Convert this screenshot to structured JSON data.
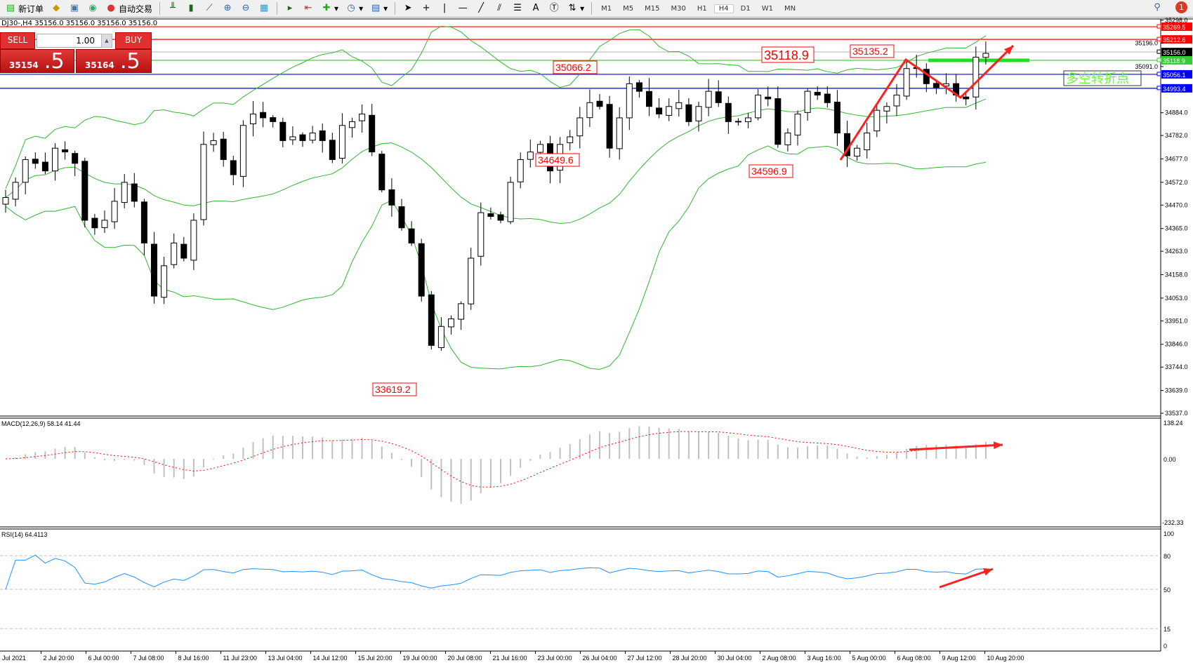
{
  "toolbar": {
    "new_order": "新订单",
    "auto_trading": "自动交易",
    "icons": [
      "new-order-icon",
      "market-watch-icon",
      "navigator-icon",
      "signals-icon",
      "auto-trading-icon",
      "bar-chart-icon",
      "candlestick-icon",
      "line-chart-icon",
      "zoom-in-icon",
      "zoom-out-icon",
      "tile-windows-icon",
      "auto-scroll-icon",
      "chart-shift-icon",
      "indicators-icon",
      "periods-icon",
      "templates-icon",
      "cursor-icon",
      "crosshair-icon",
      "vertical-line-icon",
      "horizontal-line-icon",
      "trendline-icon",
      "equidistant-channel-icon",
      "fibonacci-icon",
      "text-icon",
      "text-label-icon",
      "arrows-icon"
    ],
    "text_tool": "A",
    "timeframes": [
      "M1",
      "M5",
      "M15",
      "M30",
      "H1",
      "H4",
      "D1",
      "W1",
      "MN"
    ],
    "active_timeframe": "H4",
    "notifications": "1"
  },
  "chart": {
    "title": "DJ30-,H4  35156.0 35156.0 35156.0 35156.0",
    "price_axis": [
      "35298.0",
      "35196.0",
      "35091.0",
      "34884.0",
      "34782.0",
      "34677.0",
      "34572.0",
      "34470.0",
      "34365.0",
      "34263.0",
      "34158.0",
      "34053.0",
      "33951.0",
      "33846.0",
      "33744.0",
      "33639.0",
      "33537.0"
    ],
    "price_axis_values": [
      35298,
      35196,
      35091,
      34884,
      34782,
      34677,
      34572,
      34470,
      34365,
      34263,
      34158,
      34053,
      33951,
      33846,
      33744,
      33639,
      33537
    ],
    "levels": [
      {
        "label": "35269.5",
        "value": 35269.5,
        "color": "#ff0000"
      },
      {
        "label": "35212.6",
        "value": 35212.6,
        "color": "#ff0000"
      },
      {
        "label": "35156.0",
        "value": 35156.0,
        "color": "#000000",
        "line": "#c0c0c0"
      },
      {
        "label": "35118.9",
        "value": 35118.9,
        "color": "#32cd32"
      },
      {
        "label": "35056.1",
        "value": 35056.1,
        "color": "#0000ff"
      },
      {
        "label": "34993.4",
        "value": 34993.4,
        "color": "#0000ff"
      }
    ],
    "annotations": [
      {
        "text": "35066.2",
        "big": false
      },
      {
        "text": "35118.9",
        "big": true
      },
      {
        "text": "35135.2",
        "big": false
      },
      {
        "text": "34649.6",
        "big": false
      },
      {
        "text": "34596.9",
        "big": false
      },
      {
        "text": "33619.2",
        "big": false
      }
    ],
    "signal_label": "多空转折点",
    "closes": [
      34504,
      34572,
      34674,
      34657,
      34623,
      34725,
      34708,
      34657,
      34402,
      34368,
      34402,
      34487,
      34572,
      34487,
      34300,
      34062,
      34198,
      34300,
      34232,
      34402,
      34742,
      34759,
      34674,
      34606,
      34827,
      34878,
      34861,
      34844,
      34759,
      34776,
      34759,
      34793,
      34759,
      34674,
      34827,
      34844,
      34878,
      34708,
      34538,
      34470,
      34368,
      34300,
      34062,
      33841,
      33926,
      33960,
      34028,
      34232,
      34436,
      34419,
      34402,
      34572,
      34674,
      34708,
      34742,
      34623,
      34742,
      34776,
      34861,
      34929,
      34912,
      34725,
      34861,
      35014,
      34980,
      34912,
      34878,
      34912,
      34929,
      34844,
      34912,
      34980,
      34929,
      34844,
      34844,
      34861,
      34963,
      34946,
      34742,
      34793,
      34878,
      34980,
      34963,
      34929,
      34793,
      34691,
      34725,
      34793,
      34895,
      34912,
      34963,
      35082,
      35082,
      35014,
      34997,
      35014,
      34963,
      34946,
      35133,
      35150
    ],
    "colors": {
      "bands": "#32b432",
      "bull": "#ffffff",
      "bear": "#000000",
      "arrow": "#ff2020",
      "signal_text": "#66ff33"
    }
  },
  "trade_panel": {
    "sell": "SELL",
    "buy": "BUY",
    "lot": "1.00",
    "bid_main": "35154",
    "bid_big": ".5",
    "ask_main": "35164",
    "ask_big": ".5"
  },
  "macd": {
    "label": "MACD(12,26,9) 58.14 41.44",
    "axis": [
      "138.24",
      "0.00",
      "-232.33"
    ],
    "max": 138.24,
    "min": -232.33
  },
  "rsi": {
    "label": "RSI(14) 64.4113",
    "axis": [
      "100",
      "80",
      "50",
      "15",
      "0"
    ],
    "levels": [
      80,
      50,
      15
    ]
  },
  "time_axis": [
    "Jul 2021",
    "2 Jul 20:00",
    "6 Jul 00:00",
    "7 Jul 08:00",
    "8 Jul 16:00",
    "11 Jul 23:00",
    "13 Jul 04:00",
    "14 Jul 12:00",
    "15 Jul 20:00",
    "19 Jul 00:00",
    "20 Jul 08:00",
    "21 Jul 16:00",
    "23 Jul 00:00",
    "26 Jul 04:00",
    "27 Jul 12:00",
    "28 Jul 20:00",
    "30 Jul 04:00",
    "2 Aug 08:00",
    "3 Aug 16:00",
    "5 Aug 00:00",
    "6 Aug 08:00",
    "9 Aug 12:00",
    "10 Aug 20:00"
  ]
}
